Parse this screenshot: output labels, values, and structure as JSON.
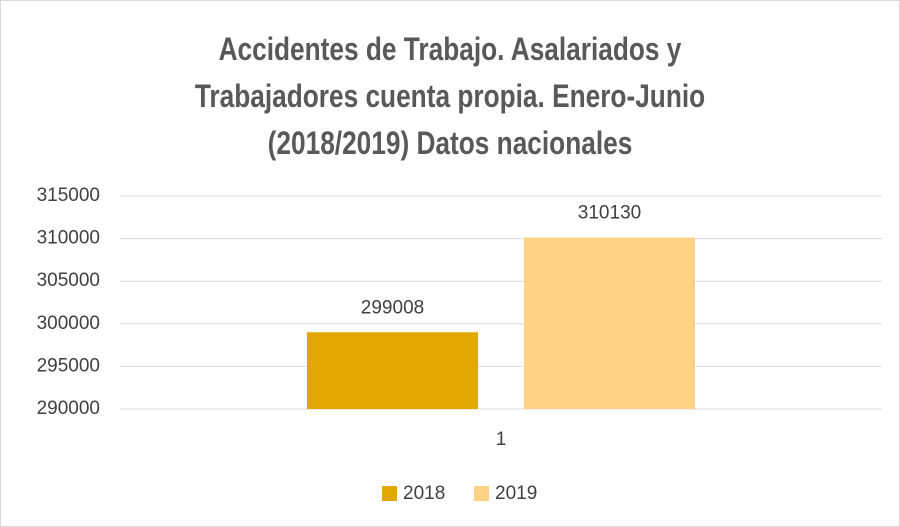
{
  "chart_data": {
    "type": "bar",
    "title": "Accidentes de Trabajo. Asalariados y Trabajadores cuenta propia. Enero-Junio (2018/2019) Datos nacionales",
    "categories": [
      "1"
    ],
    "series": [
      {
        "name": "2018",
        "color": "#e2a800",
        "values": [
          299008
        ]
      },
      {
        "name": "2019",
        "color": "#ffd285",
        "values": [
          310130
        ]
      }
    ],
    "ylim": [
      290000,
      315000
    ],
    "yticks": [
      290000,
      295000,
      300000,
      305000,
      310000,
      315000
    ],
    "grid": true,
    "legend": "bottom"
  }
}
